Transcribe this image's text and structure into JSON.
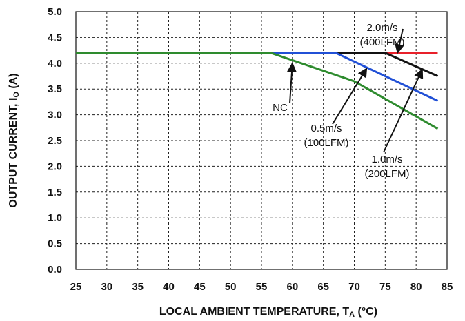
{
  "chart_data": {
    "type": "line",
    "xlabel": "LOCAL AMBIENT TEMPERATURE, T",
    "xlabel_sub": "A",
    "xlabel_unit": " (°C)",
    "ylabel": "OUTPUT CURRENT, I",
    "ylabel_sub": "O",
    "ylabel_unit": " (A)",
    "xlim": [
      25,
      85
    ],
    "ylim": [
      0,
      5
    ],
    "xticks": [
      "25",
      "30",
      "35",
      "40",
      "45",
      "50",
      "55",
      "60",
      "65",
      "70",
      "75",
      "80",
      "85"
    ],
    "yticks": [
      "0.0",
      "0.5",
      "1.0",
      "1.5",
      "2.0",
      "2.5",
      "3.0",
      "3.5",
      "4.0",
      "4.5",
      "5.0"
    ],
    "grid": true,
    "series": [
      {
        "color": "#e8202a",
        "x": [
          25,
          83.5
        ],
        "y": [
          4.2,
          4.2
        ]
      },
      {
        "color": "#111111",
        "x": [
          25,
          75,
          83.5
        ],
        "y": [
          4.2,
          4.2,
          3.75
        ]
      },
      {
        "color": "#2150d6",
        "x": [
          25,
          67,
          83.5
        ],
        "y": [
          4.2,
          4.2,
          3.27
        ]
      },
      {
        "color": "#2e8b2e",
        "x": [
          25,
          56.5,
          70,
          83.5
        ],
        "y": [
          4.2,
          4.2,
          3.65,
          2.73
        ]
      }
    ],
    "annotations": [
      {
        "label_lines": [
          "2.0m/s",
          "(400LFM)"
        ],
        "target": [
          77,
          4.2
        ]
      },
      {
        "label_lines": [
          "NC"
        ],
        "target": [
          60,
          4.0
        ]
      },
      {
        "label_lines": [
          "0.5m/s",
          "(100LFM)"
        ],
        "target": [
          72,
          3.9
        ]
      },
      {
        "label_lines": [
          "1.0m/s",
          "(200LFM)"
        ],
        "target": [
          81,
          3.88
        ]
      }
    ]
  }
}
